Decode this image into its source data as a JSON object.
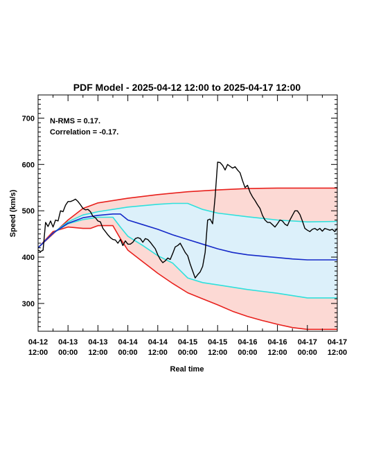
{
  "chart_data": {
    "type": "line",
    "title": "PDF Model - 2025-04-12 12:00 to 2025-04-17 12:00",
    "xlabel": "Real time",
    "ylabel": "Speed (km/s)",
    "xlim": [
      0,
      120
    ],
    "ylim": [
      240,
      750
    ],
    "y_ticks": [
      300,
      400,
      500,
      600,
      700
    ],
    "y_tick_labels": [
      "300",
      "400",
      "500",
      "600",
      "700"
    ],
    "x_ticks": [
      0,
      12,
      24,
      36,
      48,
      60,
      72,
      84,
      96,
      108,
      120
    ],
    "x_tick_labels": [
      [
        "04-12",
        "12:00"
      ],
      [
        "04-13",
        "00:00"
      ],
      [
        "04-13",
        "12:00"
      ],
      [
        "04-14",
        "00:00"
      ],
      [
        "04-14",
        "12:00"
      ],
      [
        "04-15",
        "00:00"
      ],
      [
        "04-15",
        "12:00"
      ],
      [
        "04-16",
        "00:00"
      ],
      [
        "04-16",
        "12:00"
      ],
      [
        "04-17",
        "00:00"
      ],
      [
        "04-17",
        "12:00"
      ]
    ],
    "x_unit": "hours after 2025-04-12 12:00",
    "annotations": [
      "N-RMS = 0.17.",
      "Correlation = -0.17."
    ],
    "grid": false,
    "legend": "none",
    "colors": {
      "outer_band_fill": "#fcd9d4",
      "outer_band_line": "#e8201c",
      "inner_band_fill": "#dcf0fa",
      "inner_band_line": "#2ee0dc",
      "model": "#1428c8",
      "observed": "#000000"
    },
    "series": [
      {
        "role": "outer-upper",
        "x": [
          0,
          6,
          12,
          18,
          24,
          36,
          48,
          60,
          72,
          84,
          96,
          108,
          120
        ],
        "values": [
          420,
          450,
          480,
          505,
          517,
          527,
          535,
          541,
          545,
          548,
          549,
          549,
          549
        ]
      },
      {
        "role": "outer-lower",
        "x": [
          0,
          6,
          12,
          18,
          21,
          24,
          30,
          33,
          36,
          42,
          48,
          54,
          60,
          66,
          72,
          78,
          84,
          90,
          96,
          102,
          108,
          114,
          120
        ],
        "values": [
          420,
          455,
          465,
          462,
          462,
          468,
          468,
          440,
          415,
          390,
          365,
          343,
          323,
          310,
          297,
          283,
          272,
          263,
          255,
          248,
          244,
          244,
          244
        ]
      },
      {
        "role": "inner-upper",
        "x": [
          0,
          6,
          12,
          18,
          24,
          36,
          48,
          54,
          60,
          66,
          72,
          84,
          96,
          108,
          120
        ],
        "values": [
          420,
          452,
          476,
          491,
          498,
          508,
          514,
          516,
          516,
          503,
          495,
          487,
          480,
          476,
          477
        ]
      },
      {
        "role": "inner-lower",
        "x": [
          0,
          6,
          12,
          18,
          24,
          30,
          33,
          36,
          42,
          48,
          54,
          60,
          66,
          72,
          84,
          96,
          108,
          120
        ],
        "values": [
          420,
          452,
          472,
          481,
          486,
          486,
          465,
          445,
          425,
          403,
          387,
          355,
          345,
          340,
          330,
          322,
          312,
          312
        ]
      },
      {
        "role": "model",
        "x": [
          0,
          6,
          12,
          18,
          24,
          30,
          33,
          36,
          42,
          48,
          54,
          60,
          66,
          72,
          78,
          84,
          90,
          96,
          102,
          108,
          114,
          120
        ],
        "values": [
          420,
          452,
          473,
          485,
          490,
          493,
          493,
          480,
          470,
          460,
          448,
          438,
          428,
          418,
          410,
          405,
          402,
          399,
          396,
          394,
          394,
          394
        ]
      },
      {
        "role": "observed",
        "x": [
          0,
          1,
          2,
          3,
          4,
          5,
          6,
          7,
          8,
          9,
          10,
          11,
          12,
          13,
          14,
          15,
          16,
          17,
          18,
          19,
          20,
          21,
          22,
          23,
          24,
          25,
          26,
          27,
          28,
          29,
          30,
          31,
          32,
          33,
          34,
          35,
          36,
          37,
          38,
          39,
          40,
          41,
          42,
          43,
          44,
          45,
          46,
          47,
          48,
          49,
          50,
          51,
          52,
          53,
          54,
          55,
          56,
          57,
          58,
          59,
          60,
          61,
          62,
          63,
          64,
          65,
          66,
          67,
          68,
          69,
          70,
          71,
          72,
          73,
          74,
          75,
          76,
          77,
          78,
          79,
          80,
          81,
          82,
          83,
          84,
          85,
          86,
          87,
          88,
          89,
          90,
          91,
          92,
          93,
          94,
          95,
          96,
          97,
          98,
          99,
          100,
          101,
          102,
          103,
          104,
          105,
          106,
          107,
          108,
          109,
          110,
          111,
          112,
          113,
          114,
          115,
          116,
          117,
          118,
          119,
          120
        ],
        "values": [
          415,
          412,
          415,
          475,
          466,
          478,
          465,
          480,
          478,
          500,
          498,
          512,
          520,
          520,
          522,
          525,
          520,
          513,
          505,
          502,
          503,
          498,
          488,
          485,
          478,
          476,
          462,
          455,
          448,
          442,
          438,
          437,
          430,
          438,
          425,
          435,
          428,
          428,
          432,
          440,
          442,
          440,
          432,
          440,
          438,
          432,
          425,
          418,
          405,
          395,
          388,
          392,
          398,
          395,
          408,
          422,
          425,
          430,
          420,
          410,
          403,
          385,
          370,
          355,
          362,
          368,
          380,
          410,
          480,
          482,
          472,
          530,
          605,
          604,
          598,
          588,
          600,
          596,
          592,
          595,
          588,
          582,
          565,
          550,
          555,
          540,
          530,
          522,
          513,
          505,
          490,
          480,
          475,
          475,
          470,
          465,
          472,
          480,
          478,
          471,
          468,
          480,
          490,
          500,
          500,
          492,
          478,
          462,
          458,
          455,
          460,
          462,
          458,
          462,
          456,
          462,
          460,
          458,
          460,
          455,
          462
        ]
      }
    ]
  }
}
